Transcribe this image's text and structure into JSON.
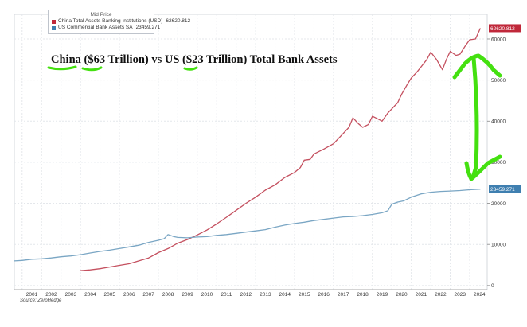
{
  "chart_data": {
    "type": "line",
    "title": "China ($63 Trillion) vs US ($23 Trillion) Total Bank Assets",
    "legend_title": "Mid Price",
    "legend_position": "top-left",
    "source": "Source: ZeroHedge",
    "grid": true,
    "xlim": [
      2000.6,
      2024.9
    ],
    "ylim": [
      -1000,
      66000
    ],
    "yticks": [
      0,
      10000,
      20000,
      30000,
      40000,
      50000,
      60000
    ],
    "xticks": [
      "2001",
      "2002",
      "2003",
      "2004",
      "2005",
      "2006",
      "2007",
      "2008",
      "2009",
      "2010",
      "2011",
      "2012",
      "2013",
      "2014",
      "2015",
      "2016",
      "2017",
      "2018",
      "2019",
      "2020",
      "2021",
      "2022",
      "2023",
      "2024"
    ],
    "series": [
      {
        "name": "China Total Assets Banking Institutions (USD)",
        "last_value": "62620.812",
        "color": "#c4505f",
        "points": [
          [
            2004.0,
            3600
          ],
          [
            2004.5,
            3800
          ],
          [
            2005.0,
            4100
          ],
          [
            2005.5,
            4500
          ],
          [
            2006.0,
            4900
          ],
          [
            2006.5,
            5300
          ],
          [
            2007.0,
            6000
          ],
          [
            2007.5,
            6700
          ],
          [
            2008.0,
            8000
          ],
          [
            2008.5,
            9000
          ],
          [
            2009.0,
            10300
          ],
          [
            2009.5,
            11200
          ],
          [
            2010.0,
            12300
          ],
          [
            2010.5,
            13500
          ],
          [
            2011.0,
            15000
          ],
          [
            2011.5,
            16600
          ],
          [
            2012.0,
            18300
          ],
          [
            2012.5,
            20000
          ],
          [
            2013.0,
            21500
          ],
          [
            2013.5,
            23200
          ],
          [
            2014.0,
            24500
          ],
          [
            2014.5,
            26300
          ],
          [
            2015.0,
            27500
          ],
          [
            2015.3,
            28700
          ],
          [
            2015.5,
            30500
          ],
          [
            2015.8,
            30700
          ],
          [
            2016.0,
            32000
          ],
          [
            2016.5,
            33200
          ],
          [
            2017.0,
            34500
          ],
          [
            2017.5,
            37000
          ],
          [
            2017.8,
            38500
          ],
          [
            2018.0,
            40800
          ],
          [
            2018.3,
            39300
          ],
          [
            2018.5,
            38500
          ],
          [
            2018.8,
            39200
          ],
          [
            2019.0,
            41200
          ],
          [
            2019.3,
            40500
          ],
          [
            2019.5,
            40000
          ],
          [
            2019.8,
            42000
          ],
          [
            2020.0,
            43000
          ],
          [
            2020.3,
            44500
          ],
          [
            2020.5,
            46500
          ],
          [
            2020.8,
            49000
          ],
          [
            2021.0,
            50500
          ],
          [
            2021.3,
            52000
          ],
          [
            2021.5,
            53200
          ],
          [
            2021.8,
            55000
          ],
          [
            2022.0,
            56800
          ],
          [
            2022.3,
            55000
          ],
          [
            2022.6,
            52500
          ],
          [
            2022.8,
            55000
          ],
          [
            2023.0,
            57000
          ],
          [
            2023.3,
            56000
          ],
          [
            2023.5,
            56300
          ],
          [
            2023.8,
            58500
          ],
          [
            2024.0,
            59800
          ],
          [
            2024.3,
            60000
          ],
          [
            2024.55,
            62620
          ]
        ]
      },
      {
        "name": "US Commercial Bank Assets SA",
        "last_value": "23459.271",
        "color": "#7aa6c4",
        "points": [
          [
            2000.6,
            6000
          ],
          [
            2001.0,
            6100
          ],
          [
            2001.5,
            6400
          ],
          [
            2002.0,
            6500
          ],
          [
            2002.5,
            6700
          ],
          [
            2003.0,
            7000
          ],
          [
            2003.5,
            7200
          ],
          [
            2004.0,
            7500
          ],
          [
            2004.5,
            7900
          ],
          [
            2005.0,
            8300
          ],
          [
            2005.5,
            8600
          ],
          [
            2006.0,
            9000
          ],
          [
            2006.5,
            9400
          ],
          [
            2007.0,
            9800
          ],
          [
            2007.5,
            10500
          ],
          [
            2008.0,
            11000
          ],
          [
            2008.3,
            11400
          ],
          [
            2008.5,
            12400
          ],
          [
            2008.8,
            11900
          ],
          [
            2009.0,
            11700
          ],
          [
            2009.5,
            11600
          ],
          [
            2010.0,
            11800
          ],
          [
            2010.5,
            11900
          ],
          [
            2011.0,
            12200
          ],
          [
            2011.5,
            12400
          ],
          [
            2012.0,
            12700
          ],
          [
            2012.5,
            13000
          ],
          [
            2013.0,
            13300
          ],
          [
            2013.5,
            13600
          ],
          [
            2014.0,
            14200
          ],
          [
            2014.5,
            14700
          ],
          [
            2015.0,
            15100
          ],
          [
            2015.5,
            15400
          ],
          [
            2016.0,
            15800
          ],
          [
            2016.5,
            16100
          ],
          [
            2017.0,
            16400
          ],
          [
            2017.5,
            16700
          ],
          [
            2018.0,
            16800
          ],
          [
            2018.5,
            17000
          ],
          [
            2019.0,
            17300
          ],
          [
            2019.5,
            17700
          ],
          [
            2019.8,
            18200
          ],
          [
            2020.0,
            19800
          ],
          [
            2020.3,
            20300
          ],
          [
            2020.6,
            20600
          ],
          [
            2021.0,
            21500
          ],
          [
            2021.5,
            22300
          ],
          [
            2022.0,
            22700
          ],
          [
            2022.5,
            22900
          ],
          [
            2023.0,
            23000
          ],
          [
            2023.5,
            23100
          ],
          [
            2024.0,
            23300
          ],
          [
            2024.55,
            23459
          ]
        ]
      }
    ]
  },
  "annotations": [
    {
      "kind": "underline",
      "color": "#44e010"
    },
    {
      "kind": "double-arrow",
      "color": "#44e010"
    }
  ]
}
